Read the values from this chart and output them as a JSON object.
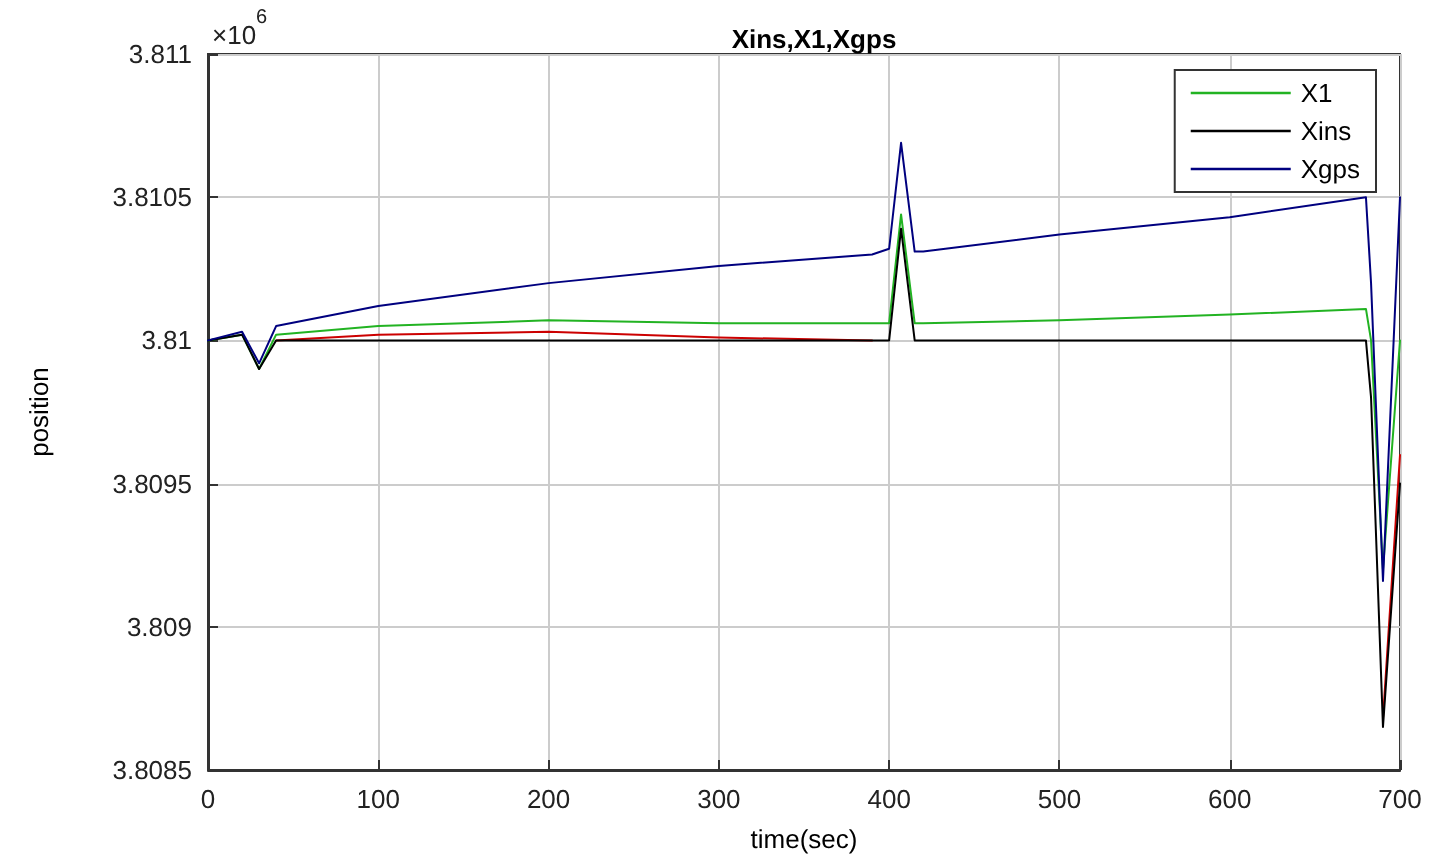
{
  "chart_data": {
    "type": "line",
    "title": "Xins,X1,Xgps",
    "xlabel": "time(sec)",
    "ylabel": "position",
    "annotations": [
      "×10$^{6}$"
    ],
    "xlim": [
      0,
      700
    ],
    "xticks": [
      0,
      100,
      200,
      300,
      400,
      500,
      600,
      700
    ],
    "ylim": [
      3.8085,
      3.811
    ],
    "yticks": [
      3.8085,
      3.809,
      3.8095,
      3.81,
      3.8105,
      3.811
    ],
    "grid": true,
    "legend": "top right",
    "marker": "none",
    "line_style": "solid",
    "series": [
      {
        "name": "X1",
        "color": "#22b322",
        "x": [
          0,
          20,
          30,
          40,
          100,
          200,
          300,
          390,
          400,
          407,
          415,
          420,
          500,
          600,
          680,
          683,
          690,
          700
        ],
        "values": [
          3.81,
          3.81002,
          3.8099,
          3.81002,
          3.81005,
          3.81007,
          3.81006,
          3.81006,
          3.81006,
          3.81044,
          3.81006,
          3.81006,
          3.81007,
          3.81009,
          3.81011,
          3.81,
          3.8092,
          3.81
        ]
      },
      {
        "color": "#cc0000",
        "x": [
          40,
          100,
          200,
          300,
          390
        ],
        "values": [
          3.81,
          3.81002,
          3.81003,
          3.81001,
          3.81
        ]
      },
      {
        "color": "#cc0000",
        "x": [
          690,
          700
        ],
        "values": [
          3.80868,
          3.8096
        ]
      },
      {
        "name": "Xins",
        "color": "#000000",
        "x": [
          0,
          20,
          30,
          40,
          100,
          200,
          300,
          390,
          400,
          407,
          415,
          420,
          500,
          600,
          680,
          683,
          690,
          700
        ],
        "values": [
          3.81,
          3.81002,
          3.8099,
          3.81,
          3.81,
          3.81,
          3.81,
          3.81,
          3.81,
          3.81039,
          3.81,
          3.81,
          3.81,
          3.81,
          3.81,
          3.8098,
          3.80865,
          3.8095
        ]
      },
      {
        "name": "Xgps",
        "color": "#00007f",
        "x": [
          0,
          20,
          30,
          40,
          100,
          200,
          300,
          390,
          400,
          407,
          415,
          420,
          500,
          600,
          680,
          683,
          690,
          700
        ],
        "values": [
          3.81,
          3.81003,
          3.80992,
          3.81005,
          3.81012,
          3.8102,
          3.81026,
          3.8103,
          3.81032,
          3.81069,
          3.81031,
          3.81031,
          3.81037,
          3.81043,
          3.8105,
          3.8102,
          3.80916,
          3.8105
        ]
      }
    ]
  }
}
